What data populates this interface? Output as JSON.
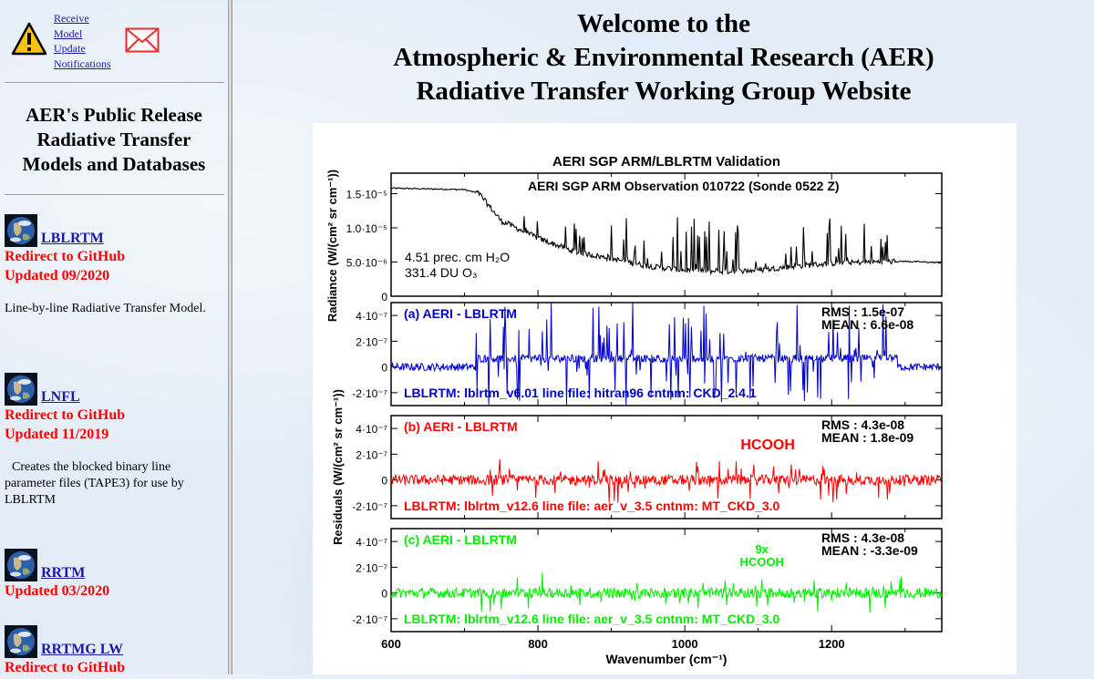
{
  "notification": {
    "link_lines": [
      "Receive",
      "Model",
      "Update",
      "Notifications"
    ],
    "icons": [
      "warning-icon",
      "mail-icon"
    ]
  },
  "sidebar": {
    "title_lines": [
      "AER's Public Release",
      "Radiative Transfer",
      "Models and Databases"
    ],
    "models": [
      {
        "name": "LBLRTM",
        "status_lines": [
          "Redirect to GitHub",
          "Updated 09/2020"
        ],
        "description": "Line-by-line Radiative Transfer Model."
      },
      {
        "name": "LNFL",
        "status_lines": [
          "Redirect to GitHub",
          "Updated 11/2019"
        ],
        "description": "Creates the blocked binary line parameter files (TAPE3) for use by LBLRTM"
      },
      {
        "name": "RRTM",
        "status_lines": [
          "Updated 03/2020"
        ],
        "description": ""
      },
      {
        "name": "RRTMG LW",
        "status_lines": [
          "Redirect to GitHub"
        ],
        "description": ""
      }
    ]
  },
  "main": {
    "title_lines": [
      "Welcome to the",
      "Atmospheric & Environmental Research (AER)",
      "Radiative Transfer Working Group Website"
    ]
  },
  "colors": {
    "link": "#1a1aa6",
    "status_red": "#ff0000",
    "series_b": "#ff0000",
    "series_c": "#00ff00",
    "series_a": "#0000cc"
  },
  "chart_data": {
    "type": "line",
    "title": "AERI SGP ARM/LBLRTM Validation",
    "xlabel": "Wavenumber (cm⁻¹)",
    "xlim": [
      600,
      1350
    ],
    "x_ticks": [
      "600",
      "800",
      "1000",
      "1200"
    ],
    "panels": [
      {
        "id": "radiance",
        "ylabel": "Radiance (W/(cm² sr cm⁻¹))",
        "ylim": [
          0,
          1.8e-05
        ],
        "y_ticks": [
          "1.5·10⁻⁵",
          "1.0·10⁻⁵",
          "5.0·10⁻⁶",
          "0"
        ],
        "heading": "AERI  SGP ARM Observation 010722  (Sonde 0522 Z)",
        "annotations": [
          "4.51 prec. cm H₂O",
          "331.4 DU O₃"
        ],
        "series_color": "#000000",
        "envelope": {
          "x": [
            600,
            700,
            720,
            750,
            800,
            850,
            900,
            950,
            1000,
            1050,
            1100,
            1150,
            1200,
            1250,
            1300,
            1350
          ],
          "y": [
            1.58e-05,
            1.56e-05,
            1.5e-05,
            1.1e-05,
            8.5e-06,
            6.5e-06,
            5.5e-06,
            4.4e-06,
            3.8e-06,
            3.6e-06,
            3.8e-06,
            4.4e-06,
            4.8e-06,
            5e-06,
            5.1e-06,
            4.9e-06
          ]
        }
      },
      {
        "id": "a",
        "label": "(a)  AERI - LBLRTM",
        "stats": [
          "RMS    :    1.5e-07",
          "MEAN  :    6.6e-08"
        ],
        "footer": "LBLRTM:  lblrtm_v6.01   line file: hitran96   cntnm: CKD_2.4.1",
        "series_color": "#0000cc",
        "ylim": [
          -3e-07,
          5e-07
        ],
        "y_ticks": [
          "4·10⁻⁷",
          "2·10⁻⁷",
          "0",
          "-2·10⁻⁷"
        ],
        "note": ""
      },
      {
        "id": "b",
        "label": "(b)  AERI - LBLRTM",
        "stats": [
          "RMS    :    4.3e-08",
          "MEAN  :    1.8e-09"
        ],
        "footer": "LBLRTM:  lblrtm_v12.6   line file: aer_v_3.5   cntnm: MT_CKD_3.0",
        "series_color": "#ff0000",
        "ylim": [
          -3e-07,
          5e-07
        ],
        "y_ticks": [
          "4·10⁻⁷",
          "2·10⁻⁷",
          "0",
          "-2·10⁻⁷"
        ],
        "note": "HCOOH"
      },
      {
        "id": "c",
        "label": "(c)  AERI - LBLRTM",
        "stats": [
          "RMS    :    4.3e-08",
          "MEAN  :   -3.3e-09"
        ],
        "footer": "LBLRTM:  lblrtm_v12.6   line file: aer_v_3.5   cntnm: MT_CKD_3.0",
        "series_color": "#00ee00",
        "ylim": [
          -3e-07,
          5e-07
        ],
        "y_ticks": [
          "4·10⁻⁷",
          "2·10⁻⁷",
          "0",
          "-2·10⁻⁷"
        ],
        "note": "9x\nHCOOH"
      }
    ],
    "residuals_ylabel": "Residuals (W/(cm² sr cm⁻¹))"
  }
}
